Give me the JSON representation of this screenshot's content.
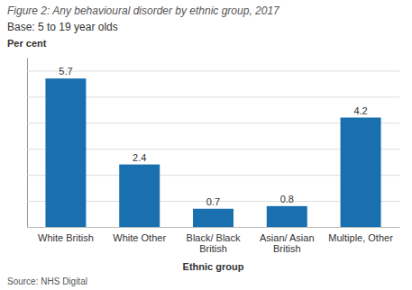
{
  "chart_data": {
    "type": "bar",
    "title": "Figure 2: Any behavioural disorder by ethnic group, 2017",
    "subtitle": "Base: 5 to 19 year olds",
    "ylabel": "Per cent",
    "xlabel": "Ethnic group",
    "source": "Source: NHS Digital",
    "categories": [
      "White British",
      "White Other",
      "Black/ Black\nBritish",
      "Asian/ Asian\nBritish",
      "Multiple, Other"
    ],
    "values": [
      5.7,
      2.4,
      0.7,
      0.8,
      4.2
    ],
    "color": "#1a6faf",
    "ylim": [
      0,
      6.5
    ],
    "yticks": [
      0,
      1,
      2,
      3,
      4,
      5,
      6
    ],
    "grid": true,
    "tick_labels": "x",
    "data_labels": true
  }
}
